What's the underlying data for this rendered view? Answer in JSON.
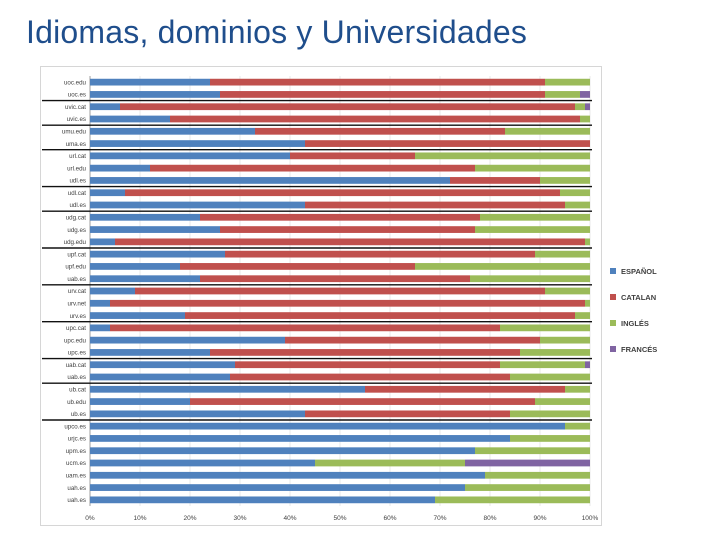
{
  "title": "Idiomas, dominios y Universidades",
  "colors": {
    "title": "#1f4e8c",
    "espanol": "#4f81bd",
    "catalan": "#c0504d",
    "ingles": "#9bbb59",
    "frances": "#8064a2"
  },
  "chart_data": {
    "type": "bar",
    "orientation": "horizontal",
    "stacked": "percent",
    "categories": [
      "uoc.edu",
      "uoc.es",
      "uvic.cat",
      "uvic.es",
      "umu.edu",
      "uma.es",
      "url.cat",
      "url.edu",
      "udl.es",
      "udl.cat",
      "udl.es",
      "udg.cat",
      "udg.es",
      "udg.edu",
      "upf.cat",
      "upf.edu",
      "uab.es",
      "urv.cat",
      "urv.net",
      "urv.es",
      "upc.cat",
      "upc.edu",
      "upc.es",
      "uab.cat",
      "uab.es",
      "ub.cat",
      "ub.edu",
      "ub.es",
      "upco.es",
      "urjc.es",
      "upm.es",
      "ucm.es",
      "uam.es",
      "uah.es",
      "uah.es"
    ],
    "series": [
      {
        "name": "ESPAÑOL",
        "values": [
          24,
          26,
          6,
          16,
          33,
          43,
          40,
          12,
          72,
          7,
          43,
          22,
          26,
          5,
          27,
          18,
          22,
          9,
          4,
          19,
          4,
          39,
          24,
          29,
          28,
          55,
          20,
          43,
          95,
          84,
          77,
          45,
          79,
          75,
          69
        ]
      },
      {
        "name": "CATALAN",
        "values": [
          67,
          65,
          91,
          82,
          50,
          57,
          25,
          65,
          18,
          87,
          52,
          56,
          51,
          94,
          62,
          47,
          54,
          82,
          95,
          78,
          78,
          51,
          62,
          53,
          56,
          40,
          69,
          41,
          0,
          0,
          0,
          0,
          0,
          0,
          0
        ]
      },
      {
        "name": "INGLÉS",
        "values": [
          9,
          7,
          2,
          2,
          17,
          0,
          35,
          23,
          10,
          6,
          5,
          22,
          23,
          1,
          11,
          35,
          24,
          9,
          1,
          3,
          18,
          10,
          14,
          17,
          16,
          5,
          11,
          16,
          5,
          16,
          23,
          30,
          21,
          25,
          31
        ]
      },
      {
        "name": "FRANCÉS",
        "values": [
          0,
          2,
          1,
          0,
          0,
          0,
          0,
          0,
          0,
          0,
          0,
          0,
          0,
          0,
          0,
          0,
          0,
          0,
          0,
          0,
          0,
          0,
          0,
          1,
          0,
          0,
          0,
          0,
          0,
          0,
          0,
          25,
          0,
          0,
          0
        ]
      }
    ],
    "xaxis": {
      "ticks": [
        "0%",
        "10%",
        "20%",
        "30%",
        "40%",
        "50%",
        "60%",
        "70%",
        "80%",
        "90%",
        "100%"
      ],
      "range": [
        0,
        100
      ]
    },
    "legend": {
      "position": "right"
    }
  }
}
